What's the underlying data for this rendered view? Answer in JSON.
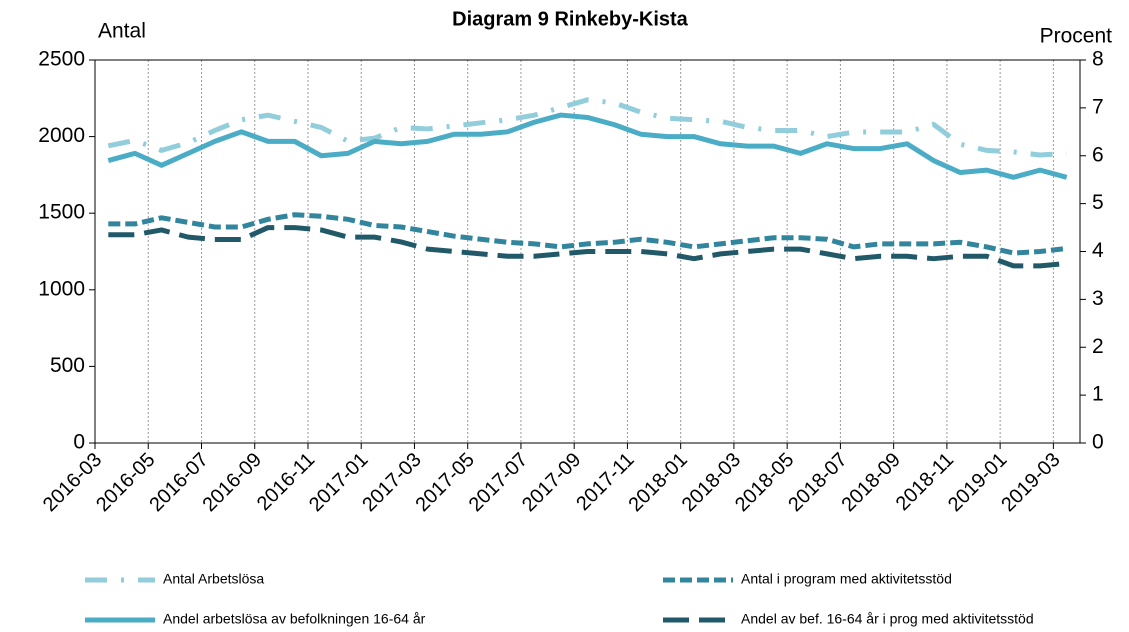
{
  "chart_data": {
    "type": "line",
    "title": "Diagram 9 Rinkeby-Kista",
    "ylabel": "Antal",
    "y2label": "Procent",
    "categories": [
      "2016-03",
      null,
      "2016-05",
      null,
      "2016-07",
      null,
      "2016-09",
      null,
      "2016-11",
      null,
      "2017-01",
      null,
      "2017-03",
      null,
      "2017-05",
      null,
      "2017-07",
      null,
      "2017-09",
      null,
      "2017-11",
      null,
      "2018-01",
      null,
      "2018-03",
      null,
      "2018-05",
      null,
      "2018-07",
      null,
      "2018-09",
      null,
      "2018-11",
      null,
      "2019-01",
      null,
      "2019-03"
    ],
    "ylim": [
      0,
      2500
    ],
    "yticks": [
      0,
      500,
      1000,
      1500,
      2000,
      2500
    ],
    "y2lim": [
      0,
      8
    ],
    "y2ticks": [
      0,
      1,
      2,
      3,
      4,
      5,
      6,
      7,
      8
    ],
    "grid": true,
    "series": [
      {
        "name": "Antal Arbetslösa",
        "color": "#92cddc",
        "line_style": "dashdot",
        "values": [
          1940,
          1975,
          1910,
          1960,
          2040,
          2110,
          2140,
          2100,
          2060,
          1970,
          1990,
          2060,
          2050,
          2070,
          2090,
          2110,
          2140,
          2190,
          2240,
          2220,
          2160,
          2120,
          2110,
          2100,
          2060,
          2040,
          2040,
          2000,
          2030,
          2030,
          2030,
          2080,
          1950,
          1910,
          1900,
          1880,
          1890
        ]
      },
      {
        "name": "Antal i program med aktivitetsstöd",
        "color": "#31859c",
        "line_style": "dashed",
        "values": [
          1430,
          1430,
          1470,
          1440,
          1410,
          1410,
          1460,
          1490,
          1480,
          1460,
          1420,
          1410,
          1380,
          1350,
          1330,
          1310,
          1300,
          1280,
          1300,
          1310,
          1330,
          1310,
          1280,
          1300,
          1320,
          1340,
          1340,
          1330,
          1280,
          1300,
          1300,
          1300,
          1310,
          1280,
          1240,
          1250,
          1270
        ]
      },
      {
        "name": "Andel arbetslösa av befolkningen 16-64 år",
        "color": "#4bacc6",
        "line_style": "solid",
        "axis": "y2",
        "values": [
          5.9,
          6.05,
          5.8,
          6.05,
          6.3,
          6.5,
          6.3,
          6.3,
          6.0,
          6.05,
          6.3,
          6.25,
          6.3,
          6.45,
          6.45,
          6.5,
          6.7,
          6.85,
          6.8,
          6.65,
          6.45,
          6.4,
          6.4,
          6.25,
          6.2,
          6.2,
          6.05,
          6.25,
          6.15,
          6.15,
          6.25,
          5.9,
          5.65,
          5.7,
          5.55,
          5.7,
          5.55
        ]
      },
      {
        "name": "Andel av bef. 16-64 år i prog med aktivitetsstöd",
        "color": "#215968",
        "line_style": "longdash",
        "axis": "y2",
        "values": [
          4.35,
          4.35,
          4.45,
          4.3,
          4.25,
          4.25,
          4.5,
          4.5,
          4.45,
          4.3,
          4.3,
          4.2,
          4.05,
          4.0,
          3.95,
          3.9,
          3.9,
          3.95,
          4.0,
          4.0,
          4.0,
          3.95,
          3.85,
          3.95,
          4.0,
          4.05,
          4.05,
          3.95,
          3.85,
          3.9,
          3.9,
          3.85,
          3.9,
          3.9,
          3.7,
          3.7,
          3.75
        ]
      }
    ]
  }
}
